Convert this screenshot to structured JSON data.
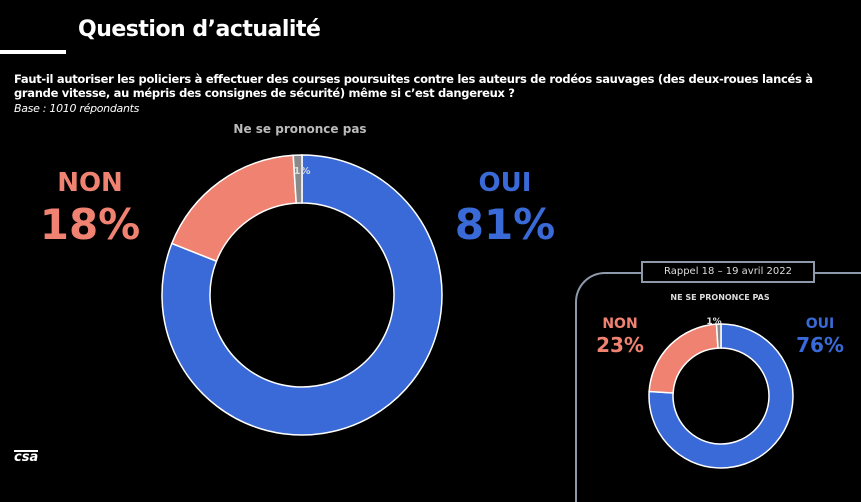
{
  "header": {
    "title": "Question d’actualité"
  },
  "question": "Faut-il autoriser les policiers à effectuer des courses poursuites contre les auteurs de rodéos sauvages (des deux-roues lancés à grande vitesse, au mépris des consignes de sécurité) même si c’est dangereux ?",
  "base": "Base : 1010 répondants",
  "logo": "csa",
  "colors": {
    "oui": "#3a6ad8",
    "non": "#f08272",
    "nsp": "#8a8a8a"
  },
  "chart_data": [
    {
      "type": "pie",
      "title": "Question d’actualité",
      "categories": [
        "OUI",
        "NON",
        "Ne se prononce pas"
      ],
      "values": [
        81,
        18,
        1
      ],
      "labels": {
        "oui": "OUI",
        "oui_pct": "81%",
        "non": "NON",
        "non_pct": "18%",
        "nsp": "Ne se prononce pas",
        "nsp_pct": "1%"
      }
    },
    {
      "type": "pie",
      "title": "Rappel 18 – 19 avril 2022",
      "categories": [
        "OUI",
        "NON",
        "NE SE PRONONCE PAS"
      ],
      "values": [
        76,
        23,
        1
      ],
      "labels": {
        "oui": "OUI",
        "oui_pct": "76%",
        "non": "NON",
        "non_pct": "23%",
        "nsp": "NE SE PRONONCE PAS",
        "nsp_pct": "1%"
      }
    }
  ]
}
